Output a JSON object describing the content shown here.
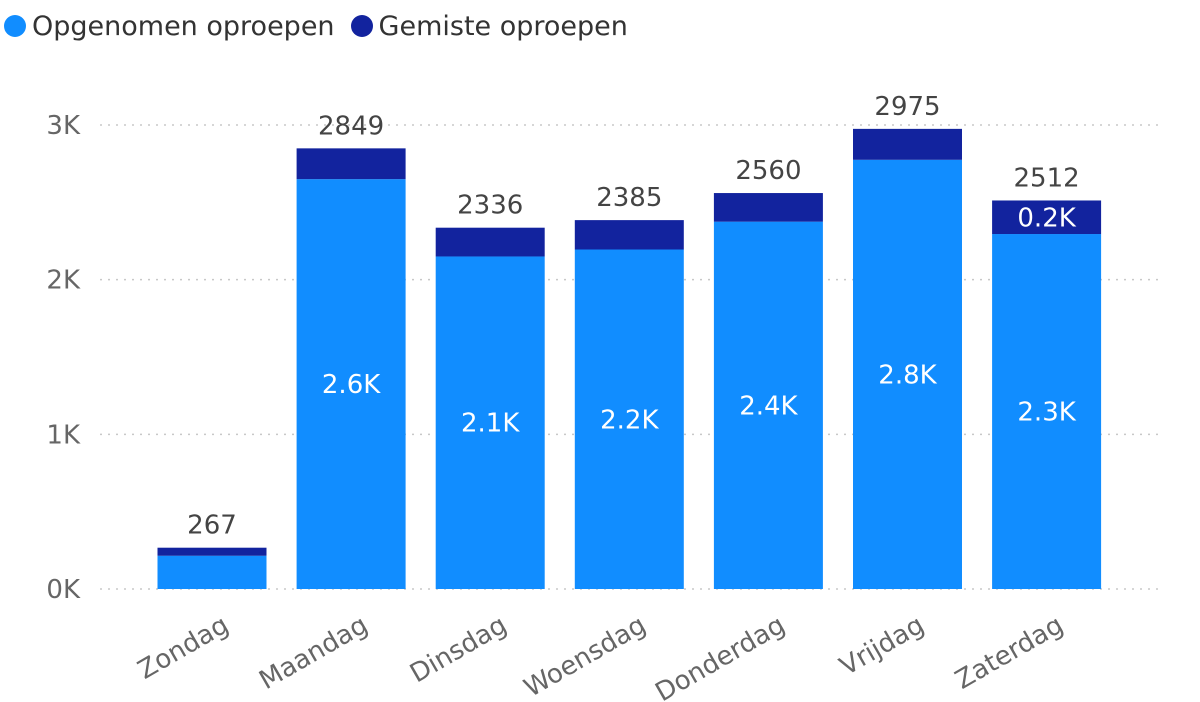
{
  "chart_data": {
    "type": "bar",
    "stacked": true,
    "categories": [
      "Zondag",
      "Maandag",
      "Dinsdag",
      "Woensdag",
      "Donderdag",
      "Vrijdag",
      "Zaterdag"
    ],
    "series": [
      {
        "name": "Opgenomen oproepen",
        "color": "#118DFF",
        "values": [
          215,
          2650,
          2150,
          2195,
          2375,
          2775,
          2295
        ],
        "data_labels": [
          "",
          "2.6K",
          "2.1K",
          "2.2K",
          "2.4K",
          "2.8K",
          "2.3K"
        ]
      },
      {
        "name": "Gemiste oproepen",
        "color": "#12239E",
        "values": [
          52,
          199,
          186,
          190,
          185,
          200,
          217
        ],
        "data_labels": [
          "",
          "",
          "",
          "",
          "",
          "",
          "0.2K"
        ]
      }
    ],
    "totals": [
      267,
      2849,
      2336,
      2385,
      2560,
      2975,
      2512
    ],
    "ylim": [
      0,
      3000
    ],
    "yticks": [
      {
        "value": 0,
        "label": "0K"
      },
      {
        "value": 1000,
        "label": "1K"
      },
      {
        "value": 2000,
        "label": "2K"
      },
      {
        "value": 3000,
        "label": "3K"
      }
    ],
    "grid": true,
    "legend_position": "top-left",
    "title": "",
    "xlabel": "",
    "ylabel": ""
  }
}
